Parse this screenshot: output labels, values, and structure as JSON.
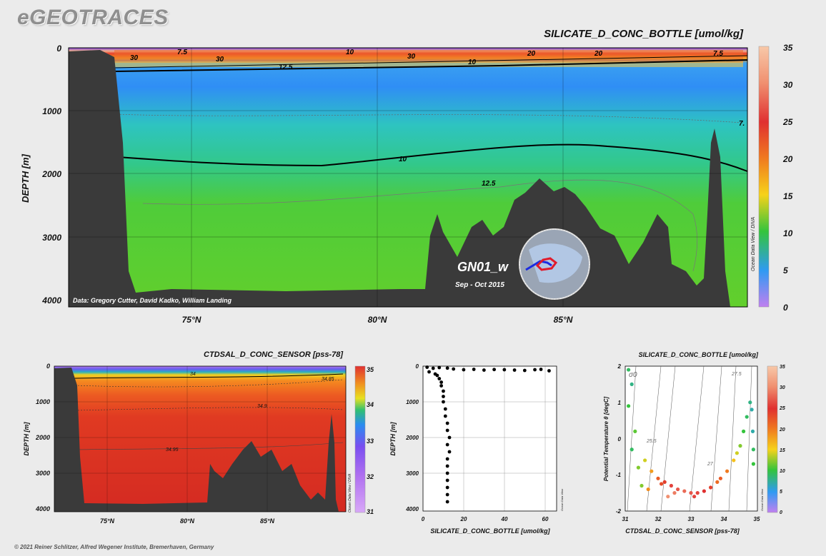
{
  "brand": "eGEOTRACES",
  "footer": "© 2021 Reiner Schlitzer, Alfred Wegener Institute, Bremerhaven, Germany",
  "side_label": "Ocean Data View / DIVA",
  "side_label_small": "Ocean Data View",
  "chart_data": [
    {
      "type": "heatmap",
      "title": "SILICATE_D_CONC_BOTTLE [umol/kg]",
      "ylabel": "DEPTH [m]",
      "xticks": [
        "75°N",
        "80°N",
        "85°N"
      ],
      "yticks": [
        "0",
        "1000",
        "2000",
        "3000",
        "4000"
      ],
      "ylim": [
        4000,
        0
      ],
      "colorbar": {
        "ticks": [
          "35",
          "30",
          "25",
          "20",
          "15",
          "10",
          "5",
          "0"
        ],
        "range": [
          0,
          35
        ]
      },
      "contour_labels": [
        "7.5",
        "30",
        "30",
        "10",
        "12.5",
        "10",
        "30",
        "20",
        "20",
        "7.5",
        "10",
        "12.5",
        "7."
      ],
      "credit": "Data: Gregory Cutter, David Kadko, William Landing",
      "cruise": "GN01_w",
      "period": "Sep - Oct 2015"
    },
    {
      "type": "heatmap",
      "title": "CTDSAL_D_CONC_SENSOR [pss-78]",
      "ylabel": "DEPTH [m]",
      "xticks": [
        "75°N",
        "80°N",
        "85°N"
      ],
      "yticks": [
        "0",
        "1000",
        "2000",
        "3000",
        "4000"
      ],
      "colorbar": {
        "ticks": [
          "35",
          "34",
          "33",
          "32",
          "31"
        ],
        "range": [
          31,
          35
        ]
      },
      "contour_labels": [
        "34",
        "34.85",
        "34.9",
        "34.95"
      ]
    },
    {
      "type": "scatter",
      "xlabel": "SILICATE_D_CONC_BOTTLE [umol/kg]",
      "ylabel": "DEPTH [m]",
      "xticks": [
        "0",
        "20",
        "40",
        "60"
      ],
      "yticks": [
        "0",
        "1000",
        "2000",
        "3000",
        "4000"
      ],
      "xlim": [
        0,
        65
      ],
      "ylim": [
        4000,
        0
      ],
      "points": [
        [
          2,
          30
        ],
        [
          5,
          60
        ],
        [
          8,
          40
        ],
        [
          12,
          55
        ],
        [
          15,
          80
        ],
        [
          20,
          100
        ],
        [
          25,
          90
        ],
        [
          30,
          110
        ],
        [
          35,
          95
        ],
        [
          40,
          100
        ],
        [
          45,
          110
        ],
        [
          50,
          120
        ],
        [
          55,
          100
        ],
        [
          58,
          90
        ],
        [
          62,
          130
        ],
        [
          3,
          160
        ],
        [
          6,
          220
        ],
        [
          7,
          260
        ],
        [
          8,
          350
        ],
        [
          9,
          450
        ],
        [
          9,
          550
        ],
        [
          10,
          700
        ],
        [
          10,
          850
        ],
        [
          10,
          1000
        ],
        [
          11,
          1200
        ],
        [
          11,
          1400
        ],
        [
          12,
          1600
        ],
        [
          12,
          1800
        ],
        [
          13,
          2000
        ],
        [
          12,
          2200
        ],
        [
          13,
          2400
        ],
        [
          12,
          2600
        ],
        [
          12,
          2800
        ],
        [
          12,
          3000
        ],
        [
          12,
          3200
        ],
        [
          12,
          3400
        ],
        [
          12,
          3600
        ],
        [
          12,
          3800
        ]
      ]
    },
    {
      "type": "scatter",
      "title": "SILICATE_D_CONC_BOTTLE [umol/kg]",
      "xlabel": "CTDSAL_D_CONC_SENSOR [pss-78]",
      "ylabel": "Potential Temperature θ [degC]",
      "xticks": [
        "31",
        "32",
        "33",
        "34",
        "35"
      ],
      "yticks": [
        "2",
        "1",
        "0",
        "-1",
        "-2"
      ],
      "xlim": [
        31,
        35
      ],
      "ylim": [
        -2,
        2
      ],
      "isopycnal_labels": [
        "σ0",
        "25.5",
        "27",
        "27.5"
      ],
      "colorbar": {
        "ticks": [
          "35",
          "30",
          "25",
          "20",
          "15",
          "10",
          "5",
          "0"
        ],
        "range": [
          0,
          35
        ]
      },
      "points": [
        [
          31.1,
          1.9,
          9
        ],
        [
          31.2,
          1.5,
          8
        ],
        [
          31.1,
          0.9,
          10
        ],
        [
          31.3,
          0.2,
          11
        ],
        [
          31.2,
          -0.3,
          9
        ],
        [
          31.4,
          -0.8,
          12
        ],
        [
          31.6,
          -0.6,
          14
        ],
        [
          31.8,
          -0.9,
          18
        ],
        [
          32.0,
          -1.1,
          22
        ],
        [
          32.2,
          -1.2,
          24
        ],
        [
          32.4,
          -1.3,
          26
        ],
        [
          32.6,
          -1.4,
          27
        ],
        [
          32.8,
          -1.45,
          28
        ],
        [
          33.0,
          -1.5,
          27
        ],
        [
          33.2,
          -1.5,
          26
        ],
        [
          33.4,
          -1.45,
          25
        ],
        [
          33.6,
          -1.35,
          24
        ],
        [
          33.9,
          -1.1,
          22
        ],
        [
          34.1,
          -0.9,
          20
        ],
        [
          34.3,
          -0.6,
          16
        ],
        [
          34.5,
          -0.2,
          12
        ],
        [
          34.6,
          0.2,
          10
        ],
        [
          34.7,
          0.6,
          9
        ],
        [
          34.8,
          1.0,
          8
        ],
        [
          34.85,
          0.8,
          7
        ],
        [
          34.88,
          0.2,
          7
        ],
        [
          34.9,
          -0.3,
          9
        ],
        [
          34.9,
          -0.7,
          10
        ],
        [
          32.3,
          -1.6,
          30
        ],
        [
          32.5,
          -1.5,
          29
        ],
        [
          33.1,
          -1.6,
          26
        ],
        [
          31.5,
          -1.3,
          12
        ],
        [
          31.7,
          -1.4,
          19
        ],
        [
          32.1,
          -1.25,
          23
        ],
        [
          33.8,
          -1.2,
          21
        ],
        [
          34.4,
          -0.4,
          14
        ]
      ]
    }
  ]
}
